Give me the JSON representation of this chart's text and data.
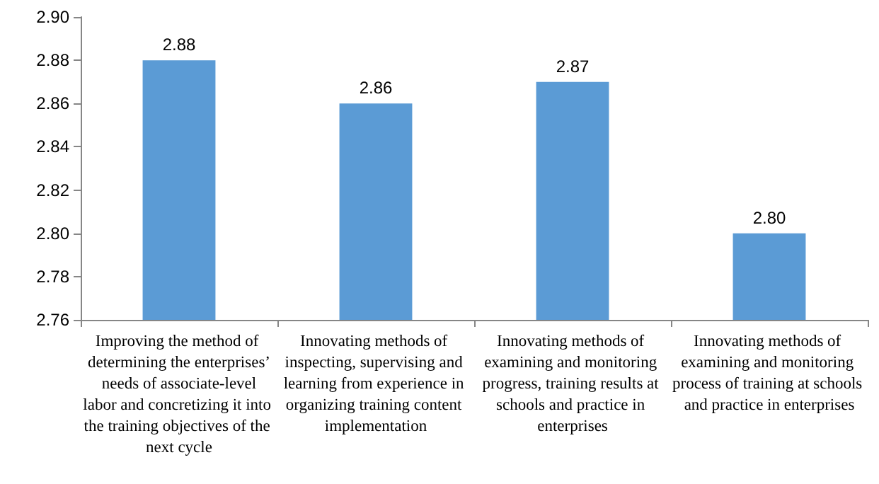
{
  "chart_data": {
    "type": "bar",
    "categories": [
      "Improving the method of determining the enterprises’ needs of associate-level labor and concretizing it into the training objectives of the next cycle",
      "Innovating methods of inspecting, supervising and learning from experience in organizing training content implementation",
      "Innovating methods of examining and monitoring progress, training results at schools and practice in enterprises",
      "Innovating methods of examining and monitoring process of training at schools and practice in enterprises"
    ],
    "values": [
      2.88,
      2.86,
      2.87,
      2.8
    ],
    "color": "#5b9bd5",
    "ylim": [
      2.76,
      2.9
    ],
    "yticks": [
      2.76,
      2.78,
      {
        "value": 2.8,
        "label": "2.80"
      },
      2.82,
      2.84,
      2.86,
      2.88,
      {
        "value": 2.9,
        "label": "2.90"
      }
    ],
    "value_labels": [
      "2.88",
      "2.86",
      "2.87",
      "2.80"
    ],
    "grid": false
  }
}
